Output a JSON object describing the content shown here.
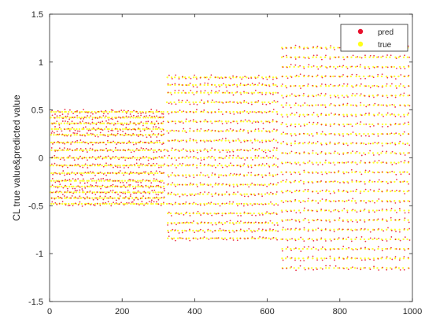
{
  "chart_data": {
    "type": "scatter",
    "title": "",
    "xlabel": "",
    "ylabel": "CL true value&predicted value",
    "xlim": [
      0,
      1000
    ],
    "ylim": [
      -1.5,
      1.5
    ],
    "x_ticks": [
      "0",
      "200",
      "400",
      "600",
      "800",
      "1000"
    ],
    "y_ticks": [
      "-1.5",
      "-1",
      "-0.5",
      "0",
      "0.5",
      "1",
      "1.5"
    ],
    "grid": false,
    "legend_position": "top-right",
    "legend": [
      {
        "name": "pred",
        "color": "#e8102c"
      },
      {
        "name": "true",
        "color": "#ffff1a"
      }
    ],
    "series": [
      {
        "name": "pred",
        "color": "#e8102c",
        "blocks": [
          {
            "x_start": 5,
            "x_end": 315,
            "x_step": 7,
            "y_levels": [
              -0.48,
              -0.42,
              -0.36,
              -0.3,
              -0.24,
              -0.16,
              -0.08,
              0.0,
              0.08,
              0.16,
              0.24,
              0.3,
              0.36,
              0.42,
              0.48
            ]
          },
          {
            "x_start": 325,
            "x_end": 630,
            "x_step": 10,
            "y_levels": [
              -0.84,
              -0.76,
              -0.68,
              -0.58,
              -0.48,
              -0.38,
              -0.28,
              -0.18,
              -0.08,
              0.0,
              0.08,
              0.18,
              0.28,
              0.38,
              0.48,
              0.58,
              0.68,
              0.76,
              0.84
            ]
          },
          {
            "x_start": 640,
            "x_end": 990,
            "x_step": 12,
            "y_levels": [
              -1.15,
              -1.05,
              -0.95,
              -0.85,
              -0.75,
              -0.65,
              -0.55,
              -0.45,
              -0.35,
              -0.25,
              -0.15,
              -0.05,
              0.05,
              0.15,
              0.25,
              0.35,
              0.45,
              0.55,
              0.65,
              0.75,
              0.85,
              0.95,
              1.05,
              1.15
            ]
          }
        ]
      },
      {
        "name": "true",
        "color": "#ffff1a",
        "blocks": [
          {
            "x_start": 5,
            "x_end": 315,
            "x_step": 7,
            "y_levels": [
              -0.48,
              -0.42,
              -0.36,
              -0.3,
              -0.24,
              -0.16,
              -0.08,
              0.0,
              0.08,
              0.16,
              0.24,
              0.3,
              0.36,
              0.42,
              0.48
            ]
          },
          {
            "x_start": 325,
            "x_end": 630,
            "x_step": 10,
            "y_levels": [
              -0.84,
              -0.76,
              -0.68,
              -0.58,
              -0.48,
              -0.38,
              -0.28,
              -0.18,
              -0.08,
              0.0,
              0.08,
              0.18,
              0.28,
              0.38,
              0.48,
              0.58,
              0.68,
              0.76,
              0.84
            ]
          },
          {
            "x_start": 640,
            "x_end": 990,
            "x_step": 12,
            "y_levels": [
              -1.15,
              -1.05,
              -0.95,
              -0.85,
              -0.75,
              -0.65,
              -0.55,
              -0.45,
              -0.35,
              -0.25,
              -0.15,
              -0.05,
              0.05,
              0.15,
              0.25,
              0.35,
              0.45,
              0.55,
              0.65,
              0.75,
              0.85,
              0.95,
              1.05,
              1.15
            ]
          }
        ]
      }
    ]
  }
}
